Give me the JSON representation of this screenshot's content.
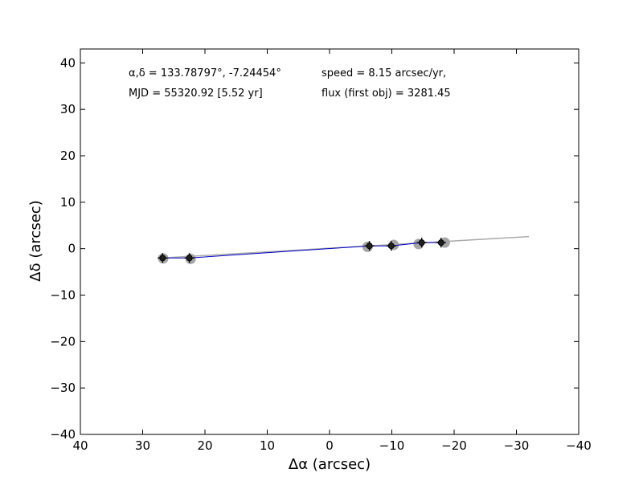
{
  "chart_data": {
    "type": "scatter",
    "title": "",
    "xlabel": "Δα (arcsec)",
    "ylabel": "Δδ (arcsec)",
    "xlim": [
      40,
      -40
    ],
    "ylim": [
      -40,
      43
    ],
    "x_ticks": [
      40,
      30,
      20,
      10,
      0,
      -10,
      -20,
      -30,
      -40
    ],
    "y_ticks": [
      40,
      30,
      20,
      10,
      0,
      -10,
      -20,
      -30,
      -40
    ],
    "x_tick_labels": [
      "40",
      "30",
      "20",
      "10",
      "0",
      "−10",
      "−20",
      "−30",
      "−40"
    ],
    "y_tick_labels": [
      "40",
      "30",
      "20",
      "10",
      "0",
      "−10",
      "−20",
      "−30",
      "−40"
    ],
    "grid": false,
    "annotations": [
      {
        "text": "α,δ = 133.78797°, -7.24454°",
        "anchor": "top-left"
      },
      {
        "text": "MJD = 55320.92 [5.52 yr]",
        "anchor": "top-left"
      },
      {
        "text": "speed = 8.15 arcsec/yr,",
        "anchor": "top-center"
      },
      {
        "text": "flux (first obj) = 3281.45",
        "anchor": "top-center"
      }
    ],
    "colors": {
      "observed_points": "#a6a6a6",
      "model_points": "#1f1f1f",
      "path_line": "#0000cc",
      "fit_line": "#aaaaaa"
    },
    "series": [
      {
        "kind": "observed",
        "x": [
          26.7,
          22.3,
          -6.1,
          -10.3,
          -14.3,
          -18.5
        ],
        "y": [
          -2.1,
          -2.2,
          0.4,
          0.8,
          1.0,
          1.3
        ]
      },
      {
        "kind": "model",
        "x": [
          26.8,
          22.5,
          -6.4,
          -9.9,
          -14.8,
          -17.9
        ],
        "y": [
          -2.0,
          -2.0,
          0.6,
          0.6,
          1.3,
          1.3
        ]
      },
      {
        "kind": "fit",
        "x": [
          26.8,
          -32.0
        ],
        "y": [
          -2.0,
          2.6
        ]
      }
    ]
  }
}
